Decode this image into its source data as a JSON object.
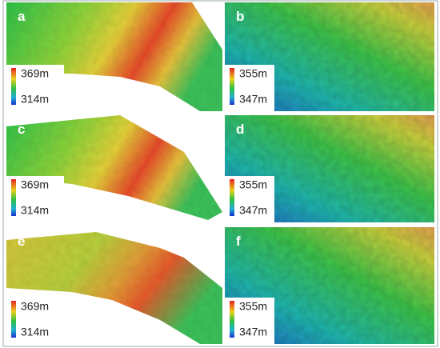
{
  "panels": [
    {
      "label": "a",
      "legend_max": "369m",
      "legend_min": "314m"
    },
    {
      "label": "b",
      "legend_max": "355m",
      "legend_min": "347m"
    },
    {
      "label": "c",
      "legend_max": "369m",
      "legend_min": "314m"
    },
    {
      "label": "d",
      "legend_max": "355m",
      "legend_min": "347m"
    },
    {
      "label": "e",
      "legend_max": "369m",
      "legend_min": "314m"
    },
    {
      "label": "f",
      "legend_max": "355m",
      "legend_min": "347m"
    }
  ]
}
